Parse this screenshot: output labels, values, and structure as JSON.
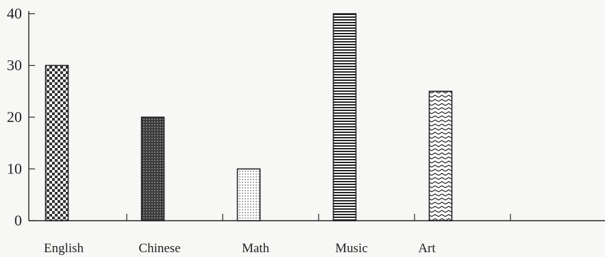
{
  "chart_data": {
    "type": "bar",
    "title": "",
    "xlabel": "",
    "ylabel": "",
    "categories": [
      "English",
      "Chinese",
      "Math",
      "Music",
      "Art"
    ],
    "values": [
      30,
      20,
      10,
      40,
      25
    ],
    "ylim": [
      0,
      40
    ],
    "yticks": [
      0,
      10,
      20,
      30,
      40
    ],
    "grid": false,
    "bar_patterns": [
      "checker",
      "dense-dots",
      "light-dots",
      "horizontal-lines",
      "zigzag"
    ]
  }
}
